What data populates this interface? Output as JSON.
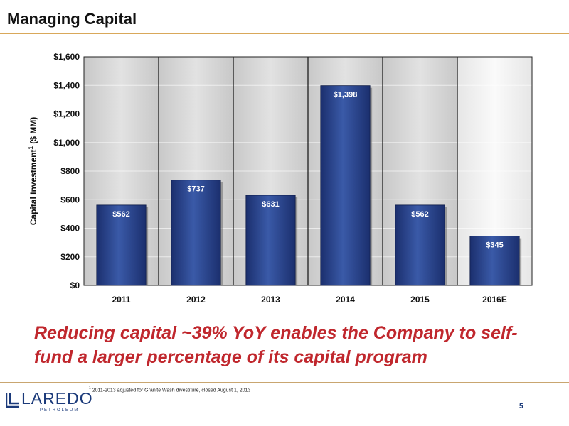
{
  "slide": {
    "title": "Managing Capital",
    "headline": "Reducing capital ~39% YoY enables the Company to self-fund a larger percentage of its capital program",
    "footnote_marker": "1",
    "footnote_text": " 2011-2013 adjusted for Granite Wash divestiture, closed August 1, 2013",
    "page_number": "5"
  },
  "logo": {
    "word": "LAREDO",
    "sub": "PETROLEUM"
  },
  "colors": {
    "bar": "#1b2f6e",
    "bar_highlight": "#3a5aa8",
    "panel_gray": "#c8c8c8",
    "panel_light": "#f2f2f2",
    "headline_red": "#c0272d",
    "brand_blue": "#1b3a7a"
  },
  "chart_data": {
    "type": "bar",
    "categories": [
      "2011",
      "2012",
      "2013",
      "2014",
      "2015",
      "2016E"
    ],
    "values": [
      562,
      737,
      631,
      1398,
      562,
      345
    ],
    "data_labels": [
      "$562",
      "$737",
      "$631",
      "$1,398",
      "$562",
      "$345"
    ],
    "ylabel": "Capital Investment",
    "ylabel_superscript": "1",
    "ylabel_suffix": " ($ MM)",
    "ylim": [
      0,
      1600
    ],
    "yticks": [
      0,
      200,
      400,
      600,
      800,
      1000,
      1200,
      1400,
      1600
    ],
    "ytick_labels": [
      "$0",
      "$200",
      "$400",
      "$600",
      "$800",
      "$1,000",
      "$1,200",
      "$1,400",
      "$1,600"
    ],
    "grid": true,
    "legend": "none"
  }
}
